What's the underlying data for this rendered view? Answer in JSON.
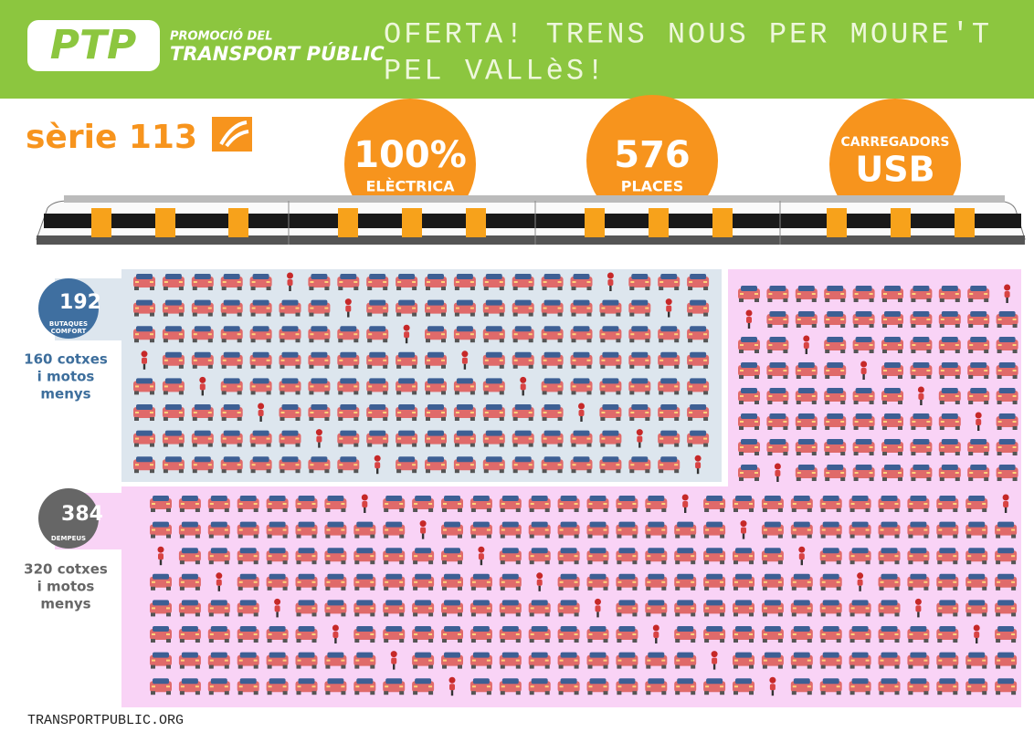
{
  "header": {
    "logo": "PTP",
    "logo_line1": "PROMOCIÓ DEL",
    "logo_line2": "TRANSPORT PÚBLIC",
    "title_line1": "OFERTA! TRENS NOUS PER MOURE'T",
    "title_line2": "PEL VALLèS!"
  },
  "series": "sèrie 113",
  "badges": [
    {
      "value": "100%",
      "label": "ELÈCTRICA"
    },
    {
      "value": "576",
      "label": "PLACES"
    },
    {
      "label": "CARREGADORS",
      "value": "USB"
    }
  ],
  "seated": {
    "count": "192",
    "label_line1": "BUTAQUES",
    "label_line2": "COMFORT",
    "note_lines": [
      "160 cotxes",
      "i motos",
      "menys"
    ]
  },
  "standing": {
    "count": "384",
    "label_line1": "DEMPEUS",
    "note_lines": [
      "320 cotxes",
      "i motos",
      "menys"
    ]
  },
  "footer": "TRANSPORTPUBLIC.ORG"
}
